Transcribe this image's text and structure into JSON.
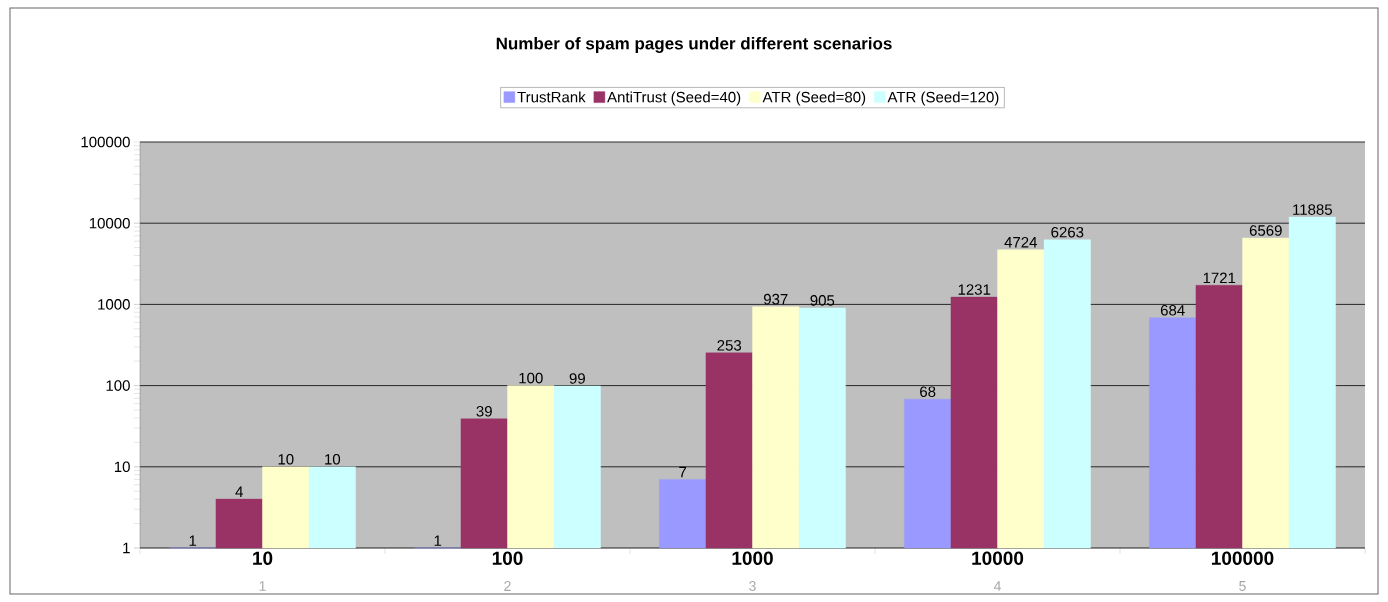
{
  "chart_data": {
    "type": "bar",
    "title": "Number of spam pages under different scenarios",
    "categories": [
      "10",
      "100",
      "1000",
      "10000",
      "100000"
    ],
    "series": [
      {
        "name": "TrustRank",
        "color": "#9999ff",
        "values": [
          1,
          1,
          7,
          68,
          684
        ]
      },
      {
        "name": "AntiTrust (Seed=40)",
        "color": "#993366",
        "values": [
          4,
          39,
          253,
          1231,
          1721
        ]
      },
      {
        "name": "ATR (Seed=80)",
        "color": "#ffffcc",
        "values": [
          10,
          100,
          937,
          4724,
          6569
        ]
      },
      {
        "name": "ATR (Seed=120)",
        "color": "#ccffff",
        "values": [
          10,
          99,
          905,
          6263,
          11885
        ]
      }
    ],
    "log": "y",
    "ylim": [
      1,
      100000
    ],
    "yticks": [
      1,
      10,
      100,
      1000,
      10000,
      100000
    ],
    "grid": "y",
    "legend": "top",
    "data_labels": true,
    "annotations": [
      "1",
      "2",
      "3",
      "4",
      "5"
    ]
  }
}
